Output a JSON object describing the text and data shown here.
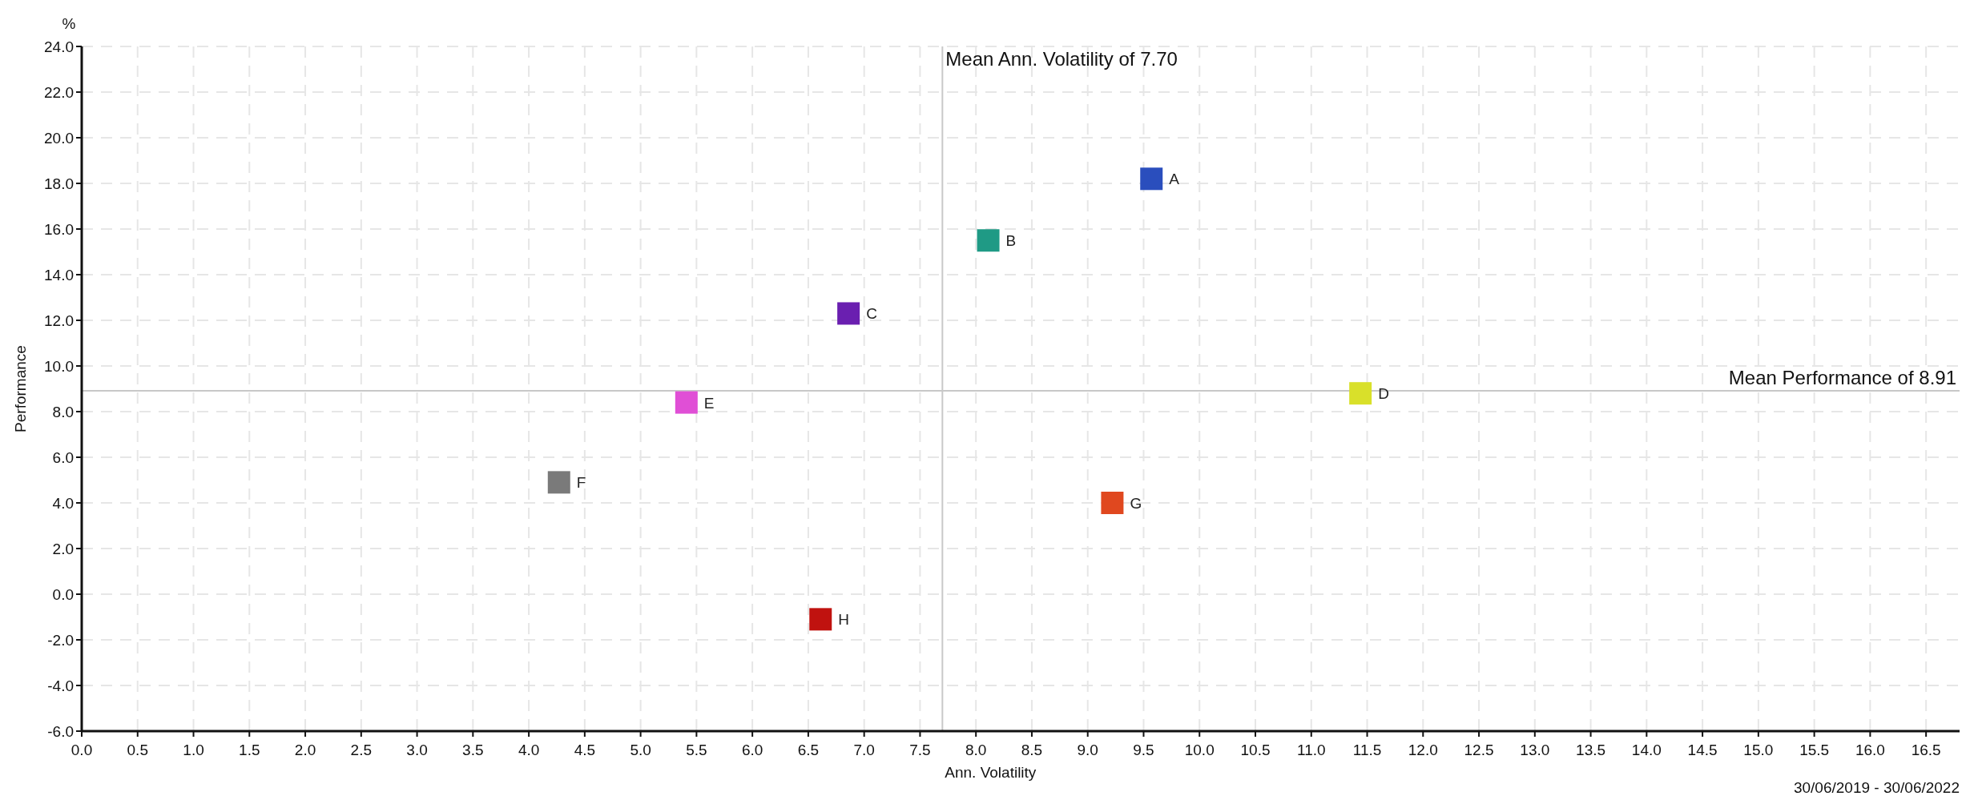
{
  "chart_data": {
    "type": "scatter",
    "xlabel": "Ann. Volatility",
    "ylabel": "Performance",
    "annotations": [
      "%",
      "30/06/2019 - 30/06/2022"
    ],
    "xlim": [
      0,
      16.8
    ],
    "xticks": [
      {
        "value": 0,
        "label": "0.0"
      },
      {
        "value": 0.5,
        "label": "0.5"
      },
      {
        "value": 1,
        "label": "1.0"
      },
      {
        "value": 1.5,
        "label": "1.5"
      },
      {
        "value": 2,
        "label": "2.0"
      },
      {
        "value": 2.5,
        "label": "2.5"
      },
      {
        "value": 3,
        "label": "3.0"
      },
      {
        "value": 3.5,
        "label": "3.5"
      },
      {
        "value": 4,
        "label": "4.0"
      },
      {
        "value": 4.5,
        "label": "4.5"
      },
      {
        "value": 5,
        "label": "5.0"
      },
      {
        "value": 5.5,
        "label": "5.5"
      },
      {
        "value": 6,
        "label": "6.0"
      },
      {
        "value": 6.5,
        "label": "6.5"
      },
      {
        "value": 7,
        "label": "7.0"
      },
      {
        "value": 7.5,
        "label": "7.5"
      },
      {
        "value": 8,
        "label": "8.0"
      },
      {
        "value": 8.5,
        "label": "8.5"
      },
      {
        "value": 9,
        "label": "9.0"
      },
      {
        "value": 9.5,
        "label": "9.5"
      },
      {
        "value": 10,
        "label": "10.0"
      },
      {
        "value": 10.5,
        "label": "10.5"
      },
      {
        "value": 11,
        "label": "11.0"
      },
      {
        "value": 11.5,
        "label": "11.5"
      },
      {
        "value": 12,
        "label": "12.0"
      },
      {
        "value": 12.5,
        "label": "12.5"
      },
      {
        "value": 13,
        "label": "13.0"
      },
      {
        "value": 13.5,
        "label": "13.5"
      },
      {
        "value": 14,
        "label": "14.0"
      },
      {
        "value": 14.5,
        "label": "14.5"
      },
      {
        "value": 15,
        "label": "15.0"
      },
      {
        "value": 15.5,
        "label": "15.5"
      },
      {
        "value": 16,
        "label": "16.0"
      },
      {
        "value": 16.5,
        "label": "16.5"
      }
    ],
    "ylim": [
      -6,
      24
    ],
    "yticks": [
      {
        "value": -6,
        "label": "-6.0"
      },
      {
        "value": -4,
        "label": "-4.0"
      },
      {
        "value": -2,
        "label": "-2.0"
      },
      {
        "value": 0,
        "label": "0.0"
      },
      {
        "value": 2,
        "label": "2.0"
      },
      {
        "value": 4,
        "label": "4.0"
      },
      {
        "value": 6,
        "label": "6.0"
      },
      {
        "value": 8,
        "label": "8.0"
      },
      {
        "value": 10,
        "label": "10.0"
      },
      {
        "value": 12,
        "label": "12.0"
      },
      {
        "value": 14,
        "label": "14.0"
      },
      {
        "value": 16,
        "label": "16.0"
      },
      {
        "value": 18,
        "label": "18.0"
      },
      {
        "value": 20,
        "label": "20.0"
      },
      {
        "value": 22,
        "label": "22.0"
      },
      {
        "value": 24,
        "label": "24.0"
      }
    ],
    "grid": true,
    "marker": "square",
    "ref_lines": [
      {
        "axis": "x",
        "value": 7.7,
        "label": "Mean Ann. Volatility of 7.70",
        "color": "#c8c8c8"
      },
      {
        "axis": "y",
        "value": 8.91,
        "label": "Mean Performance of 8.91",
        "color": "#c8c8c8"
      }
    ],
    "series": [
      {
        "name": "A",
        "color": "#2a4ebd",
        "x": [
          9.57
        ],
        "values": [
          18.2
        ]
      },
      {
        "name": "B",
        "color": "#1f9a85",
        "x": [
          8.11
        ],
        "values": [
          15.5
        ]
      },
      {
        "name": "C",
        "color": "#6a1fb0",
        "x": [
          6.86
        ],
        "values": [
          12.3
        ]
      },
      {
        "name": "D",
        "color": "#d9e02a",
        "x": [
          11.44
        ],
        "values": [
          8.8
        ]
      },
      {
        "name": "E",
        "color": "#e04fd6",
        "x": [
          5.41
        ],
        "values": [
          8.4
        ]
      },
      {
        "name": "F",
        "color": "#7a7a7a",
        "x": [
          4.27
        ],
        "values": [
          4.9
        ]
      },
      {
        "name": "G",
        "color": "#e0481f",
        "x": [
          9.22
        ],
        "values": [
          4.0
        ]
      },
      {
        "name": "H",
        "color": "#c0120f",
        "x": [
          6.61
        ],
        "values": [
          -1.1
        ]
      }
    ]
  }
}
